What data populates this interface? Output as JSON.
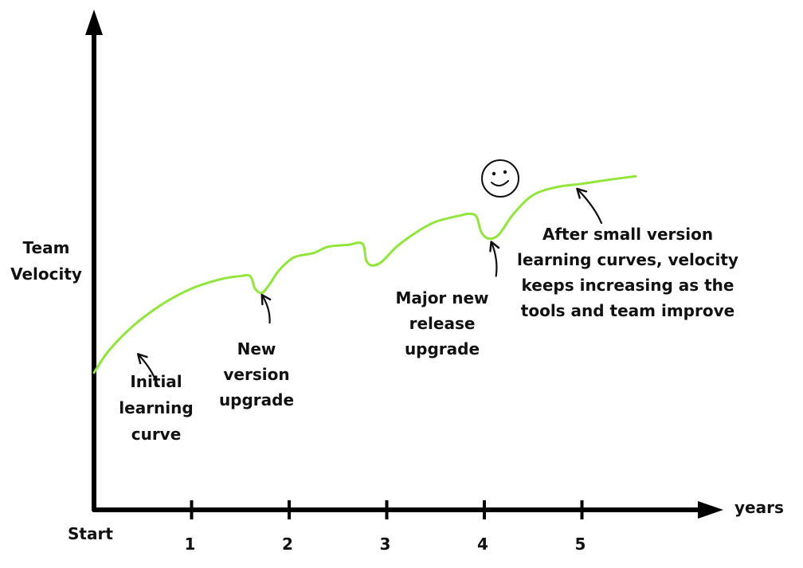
{
  "chart_data": {
    "type": "line",
    "title": "",
    "xlabel": "years",
    "ylabel": "Team Velocity",
    "origin_label": "Start",
    "xlim": [
      0,
      6.35
    ],
    "ylim": [
      0,
      7
    ],
    "x_ticks": [
      {
        "value": 1,
        "label": "1"
      },
      {
        "value": 2,
        "label": "2"
      },
      {
        "value": 3,
        "label": "3"
      },
      {
        "value": 4,
        "label": "4"
      },
      {
        "value": 5,
        "label": "5"
      }
    ],
    "grid": false,
    "legend": "none",
    "line_color": "#90e63a",
    "axis_color": "#000000",
    "series": [
      {
        "name": "",
        "points": [
          {
            "x": 0.0,
            "y": 2.2
          },
          {
            "x": 0.15,
            "y": 2.55
          },
          {
            "x": 0.4,
            "y": 2.95
          },
          {
            "x": 0.7,
            "y": 3.3
          },
          {
            "x": 1.0,
            "y": 3.55
          },
          {
            "x": 1.3,
            "y": 3.7
          },
          {
            "x": 1.5,
            "y": 3.75
          },
          {
            "x": 1.6,
            "y": 3.75
          },
          {
            "x": 1.65,
            "y": 3.55
          },
          {
            "x": 1.72,
            "y": 3.48
          },
          {
            "x": 1.8,
            "y": 3.62
          },
          {
            "x": 1.9,
            "y": 3.85
          },
          {
            "x": 2.05,
            "y": 4.05
          },
          {
            "x": 2.25,
            "y": 4.12
          },
          {
            "x": 2.4,
            "y": 4.22
          },
          {
            "x": 2.6,
            "y": 4.25
          },
          {
            "x": 2.75,
            "y": 4.27
          },
          {
            "x": 2.79,
            "y": 4.0
          },
          {
            "x": 2.85,
            "y": 3.92
          },
          {
            "x": 2.95,
            "y": 3.98
          },
          {
            "x": 3.1,
            "y": 4.22
          },
          {
            "x": 3.3,
            "y": 4.45
          },
          {
            "x": 3.5,
            "y": 4.62
          },
          {
            "x": 3.75,
            "y": 4.72
          },
          {
            "x": 3.85,
            "y": 4.75
          },
          {
            "x": 3.92,
            "y": 4.7
          },
          {
            "x": 3.97,
            "y": 4.45
          },
          {
            "x": 4.05,
            "y": 4.35
          },
          {
            "x": 4.15,
            "y": 4.42
          },
          {
            "x": 4.3,
            "y": 4.75
          },
          {
            "x": 4.5,
            "y": 5.05
          },
          {
            "x": 4.75,
            "y": 5.18
          },
          {
            "x": 5.0,
            "y": 5.23
          },
          {
            "x": 5.3,
            "y": 5.3
          },
          {
            "x": 5.55,
            "y": 5.35
          }
        ]
      }
    ],
    "annotations": [
      {
        "id": "initial",
        "lines": [
          "Initial",
          "learning",
          "curve"
        ],
        "x": 0.45,
        "y": 2.55,
        "arrow_from": {
          "x": 0.65,
          "y": 2.0
        },
        "arrow_to": {
          "x": 0.45,
          "y": 2.5
        }
      },
      {
        "id": "new-version",
        "lines": [
          "New",
          "version",
          "upgrade"
        ],
        "x": 1.72,
        "y": 3.45,
        "arrow_from": {
          "x": 1.8,
          "y": 3.0
        },
        "arrow_to": {
          "x": 1.72,
          "y": 3.45
        }
      },
      {
        "id": "major-release",
        "lines": [
          "Major new",
          "release",
          "upgrade"
        ],
        "x": 4.05,
        "y": 4.3,
        "arrow_from": {
          "x": 4.12,
          "y": 3.75
        },
        "arrow_to": {
          "x": 4.07,
          "y": 4.3
        }
      },
      {
        "id": "after-small",
        "lines": [
          "After small version",
          "learning curves, velocity",
          "keeps increasing as the",
          "tools and team improve"
        ],
        "x": 4.9,
        "y": 5.2,
        "arrow_from": {
          "x": 5.2,
          "y": 4.6
        },
        "arrow_to": {
          "x": 4.95,
          "y": 5.15
        }
      }
    ]
  }
}
